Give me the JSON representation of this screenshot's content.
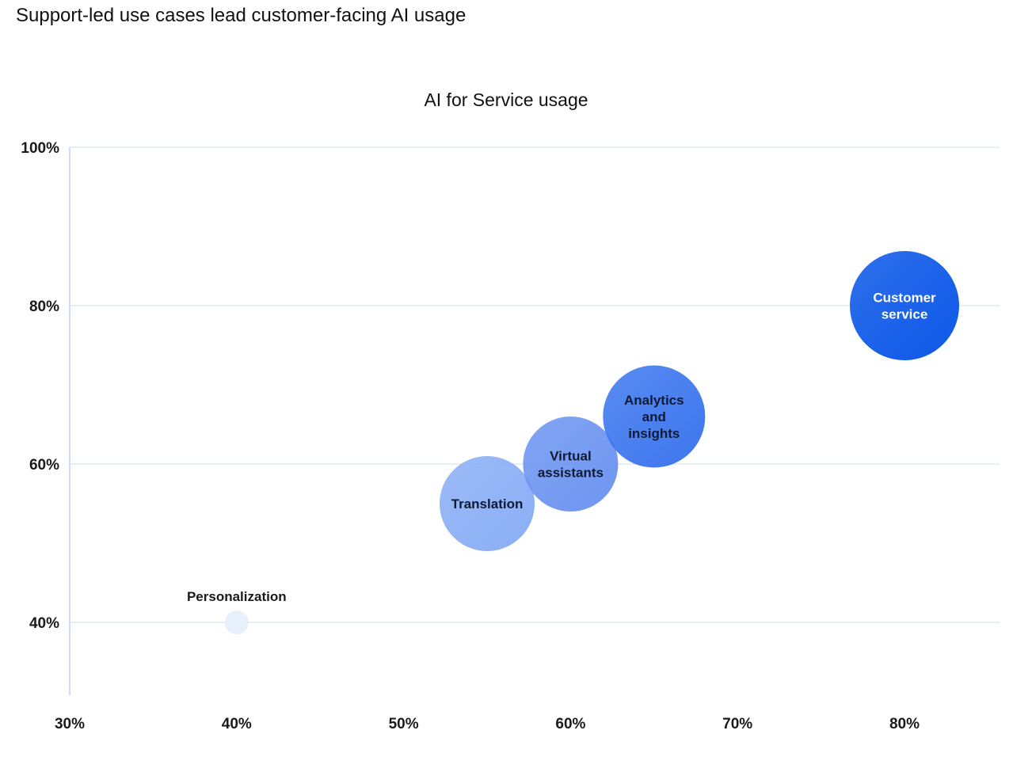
{
  "heading": "Support-led use cases lead customer-facing AI usage",
  "chart_data": {
    "type": "scatter",
    "title": "AI for Service usage",
    "xlabel": "",
    "ylabel": "",
    "xlim": [
      30,
      85
    ],
    "ylim": [
      31,
      100
    ],
    "x_ticks": [
      "30%",
      "40%",
      "50%",
      "60%",
      "70%",
      "80%"
    ],
    "x_tick_values": [
      30,
      40,
      50,
      60,
      70,
      80
    ],
    "y_ticks": [
      "100%",
      "80%",
      "60%",
      "40%"
    ],
    "y_tick_values": [
      100,
      80,
      60,
      40
    ],
    "grid": true,
    "points": [
      {
        "label": "Personalization",
        "x": 40,
        "y": 40,
        "size": 1,
        "color": "#e6eefd",
        "text_color": "#1a1a1a",
        "label_position": "above"
      },
      {
        "label": "Translation",
        "x": 55,
        "y": 55,
        "size": 4,
        "color": "#8aaef5",
        "text_color": "#0f1a33",
        "label_position": "center"
      },
      {
        "label": "Virtual assistants",
        "x": 60,
        "y": 60,
        "size": 4,
        "color": "#6d95f1",
        "text_color": "#0f1a33",
        "label_position": "center"
      },
      {
        "label": "Analytics and insights",
        "x": 65,
        "y": 66,
        "size": 4.3,
        "color": "#3c76ee",
        "text_color": "#0f1a33",
        "label_position": "center"
      },
      {
        "label": "Customer service",
        "x": 80,
        "y": 80,
        "size": 4.6,
        "color": "#0b57e8",
        "text_color": "#ffffff",
        "label_position": "center"
      }
    ]
  }
}
